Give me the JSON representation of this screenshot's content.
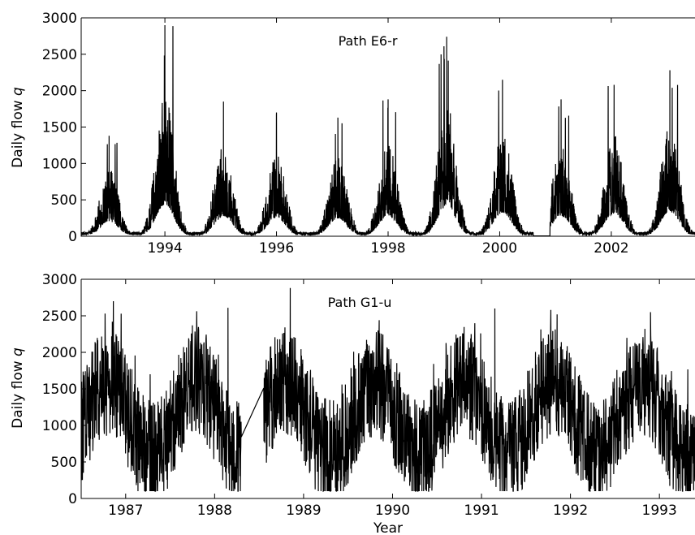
{
  "chart_data": [
    {
      "type": "line",
      "title": "Path E6-r",
      "xlabel": "",
      "ylabel": "Daily flow",
      "ylabel_symbol": "q",
      "x_unit": "year",
      "xlim": [
        1992.5,
        2003.5
      ],
      "ylim": [
        0,
        3000
      ],
      "xticks": [
        1994,
        1996,
        1998,
        2000,
        2002
      ],
      "xtick_labels": [
        "1994",
        "1996",
        "1998",
        "2000",
        "2002"
      ],
      "yticks": [
        0,
        500,
        1000,
        1500,
        2000,
        2500,
        3000
      ],
      "ytick_labels": [
        "0",
        "500",
        "1000",
        "1500",
        "2000",
        "2500",
        "3000"
      ],
      "grid": false,
      "line_color": "#000000",
      "seasonal_peaks": [
        {
          "t": 1993.0,
          "v": 1380
        },
        {
          "t": 1994.0,
          "v": 2900
        },
        {
          "t": 1995.05,
          "v": 1850
        },
        {
          "t": 1996.0,
          "v": 1700
        },
        {
          "t": 1997.1,
          "v": 1630
        },
        {
          "t": 1998.0,
          "v": 1880
        },
        {
          "t": 1999.05,
          "v": 2740
        },
        {
          "t": 2000.05,
          "v": 2150
        },
        {
          "t": 2001.1,
          "v": 1880
        },
        {
          "t": 2002.05,
          "v": 2080
        },
        {
          "t": 2003.05,
          "v": 2280
        }
      ],
      "baseline": 40,
      "gaps": [
        [
          2000.6,
          2000.9
        ]
      ]
    },
    {
      "type": "line",
      "title": "Path G1-u",
      "xlabel": "Year",
      "ylabel": "Daily flow",
      "ylabel_symbol": "q",
      "x_unit": "year",
      "xlim": [
        1986.5,
        1993.4
      ],
      "ylim": [
        0,
        3000
      ],
      "xticks": [
        1987,
        1988,
        1989,
        1990,
        1991,
        1992,
        1993
      ],
      "xtick_labels": [
        "1987",
        "1988",
        "1989",
        "1990",
        "1991",
        "1992",
        "1993"
      ],
      "yticks": [
        0,
        500,
        1000,
        1500,
        2000,
        2500,
        3000
      ],
      "ytick_labels": [
        "0",
        "500",
        "1000",
        "1500",
        "2000",
        "2500",
        "3000"
      ],
      "grid": false,
      "line_color": "#000000",
      "mean_level": 1100,
      "seasonal_amplitude": 500,
      "peak_max": [
        {
          "t": 1986.85,
          "v": 2420
        },
        {
          "t": 1987.75,
          "v": 2370
        },
        {
          "t": 1988.15,
          "v": 2610
        },
        {
          "t": 1988.85,
          "v": 2880
        },
        {
          "t": 1989.85,
          "v": 2440
        },
        {
          "t": 1990.9,
          "v": 2140
        },
        {
          "t": 1991.15,
          "v": 2600
        },
        {
          "t": 1991.85,
          "v": 2520
        },
        {
          "t": 1992.9,
          "v": 2550
        }
      ],
      "trough_min": 100,
      "linear_gap": [
        1988.3,
        1988.55
      ]
    }
  ]
}
